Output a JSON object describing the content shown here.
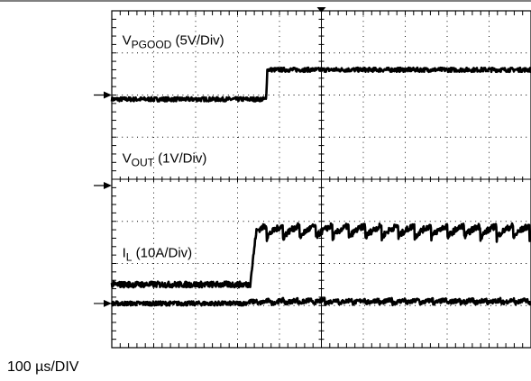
{
  "chart_data": {
    "type": "line",
    "grid": true,
    "xdivisions": 10,
    "ydivisions": 8,
    "time_scale": "100 µs/DIV",
    "trigger_marker": "top-center",
    "series": [
      {
        "name": "V",
        "sub": "PGOOD",
        "scale": "(5V/Div)",
        "level_before": 5.9,
        "level_after": 6.6,
        "t_step": 3.68,
        "edge": 0.03,
        "noise": 0.05
      },
      {
        "name": "V",
        "sub": "OUT",
        "scale": "(1V/Div)",
        "level_before": 1.05,
        "level_after": 1.1,
        "t_step": 3.15,
        "edge": 0.2,
        "noise": 0.05
      },
      {
        "name": "I",
        "sub": "L",
        "scale": "(10A/Div)",
        "level_before": 1.5,
        "level_after": 2.8,
        "t_step": 3.3,
        "edge": 0.15,
        "noise": 0.07
      }
    ],
    "ground_markers": [
      {
        "channel": 1,
        "level": 6.0
      },
      {
        "channel": 2,
        "level": 3.85
      },
      {
        "channel": 3,
        "level": 1.05
      }
    ]
  }
}
